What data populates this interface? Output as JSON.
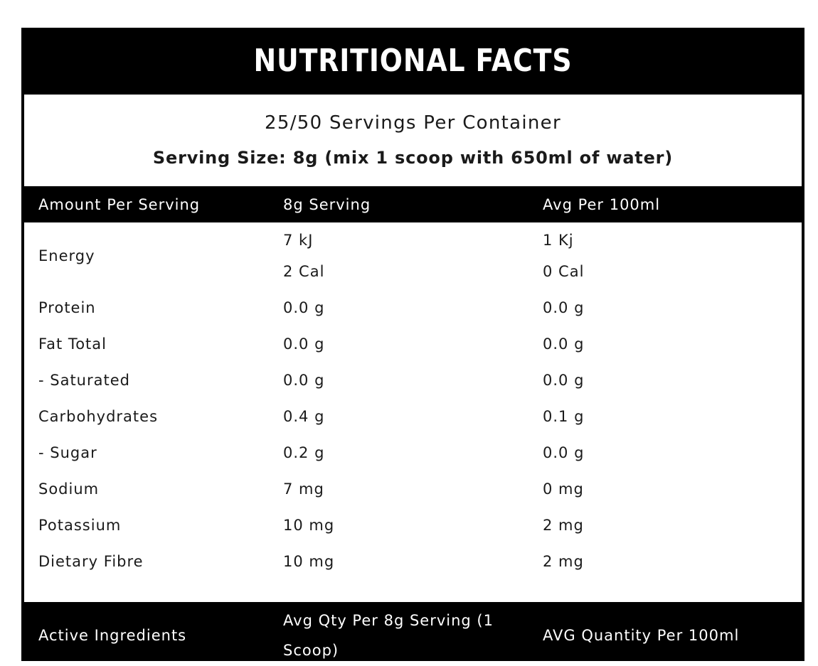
{
  "title": "Nutritional Facts",
  "servings_per_container": "25/50 Servings Per Container",
  "serving_size": "Serving Size: 8g (mix 1 scoop with 650ml of water)",
  "table": {
    "headers": [
      "Amount Per Serving",
      "8g Serving",
      "Avg Per 100ml"
    ],
    "energy": {
      "name": "Energy",
      "serving": [
        "7 kJ",
        "2 Cal"
      ],
      "per100": [
        "1 Kj",
        "0 Cal"
      ]
    },
    "rows": [
      {
        "name": "Protein",
        "serving": "0.0 g",
        "per100": "0.0 g"
      },
      {
        "name": "Fat Total",
        "serving": "0.0 g",
        "per100": "0.0 g"
      },
      {
        "name": "- Saturated",
        "serving": "0.0 g",
        "per100": "0.0 g"
      },
      {
        "name": "Carbohydrates",
        "serving": "0.4 g",
        "per100": "0.1 g"
      },
      {
        "name": "- Sugar",
        "serving": "0.2 g",
        "per100": "0.0 g"
      },
      {
        "name": "Sodium",
        "serving": "7 mg",
        "per100": "0 mg"
      },
      {
        "name": "Potassium",
        "serving": "10 mg",
        "per100": "2 mg"
      },
      {
        "name": "Dietary Fibre",
        "serving": "10 mg",
        "per100": "2 mg"
      }
    ],
    "active_headers": [
      "Active Ingredients",
      "Avg Qty Per 8g Serving (1 Scoop)",
      "AVG Quantity Per 100ml"
    ]
  },
  "colors": {
    "panel": "#000000",
    "box": "#ffffff",
    "text": "#1a1a1a"
  }
}
